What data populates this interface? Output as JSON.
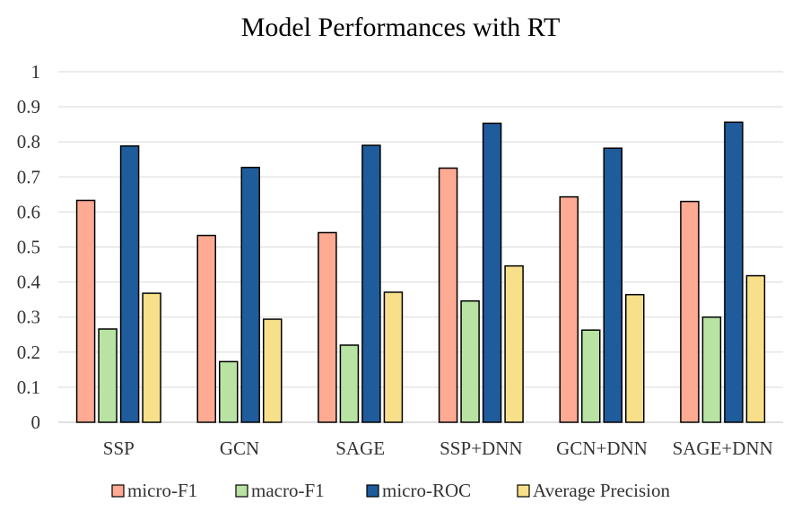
{
  "chart_data": {
    "type": "bar",
    "title": "Model Performances with RT",
    "xlabel": "",
    "ylabel": "",
    "categories": [
      "SSP",
      "GCN",
      "SAGE",
      "SSP+DNN",
      "GCN+DNN",
      "SAGE+DNN"
    ],
    "series": [
      {
        "name": "micro-F1",
        "color": "#FFAA92",
        "values": [
          0.633,
          0.533,
          0.541,
          0.725,
          0.643,
          0.63
        ]
      },
      {
        "name": "macro-F1",
        "color": "#B8E3A2",
        "values": [
          0.266,
          0.173,
          0.22,
          0.346,
          0.263,
          0.3
        ]
      },
      {
        "name": "micro-ROC",
        "color": "#1F5C9B",
        "values": [
          0.788,
          0.727,
          0.79,
          0.853,
          0.782,
          0.856
        ]
      },
      {
        "name": "Average Precision",
        "color": "#F8E08A",
        "values": [
          0.368,
          0.294,
          0.371,
          0.446,
          0.364,
          0.418
        ]
      }
    ],
    "ylim": [
      0,
      1
    ],
    "yticks": [
      "0",
      "0.1",
      "0.2",
      "0.3",
      "0.4",
      "0.5",
      "0.6",
      "0.7",
      "0.8",
      "0.9",
      "1"
    ],
    "grid": true,
    "legend": "bottom"
  }
}
